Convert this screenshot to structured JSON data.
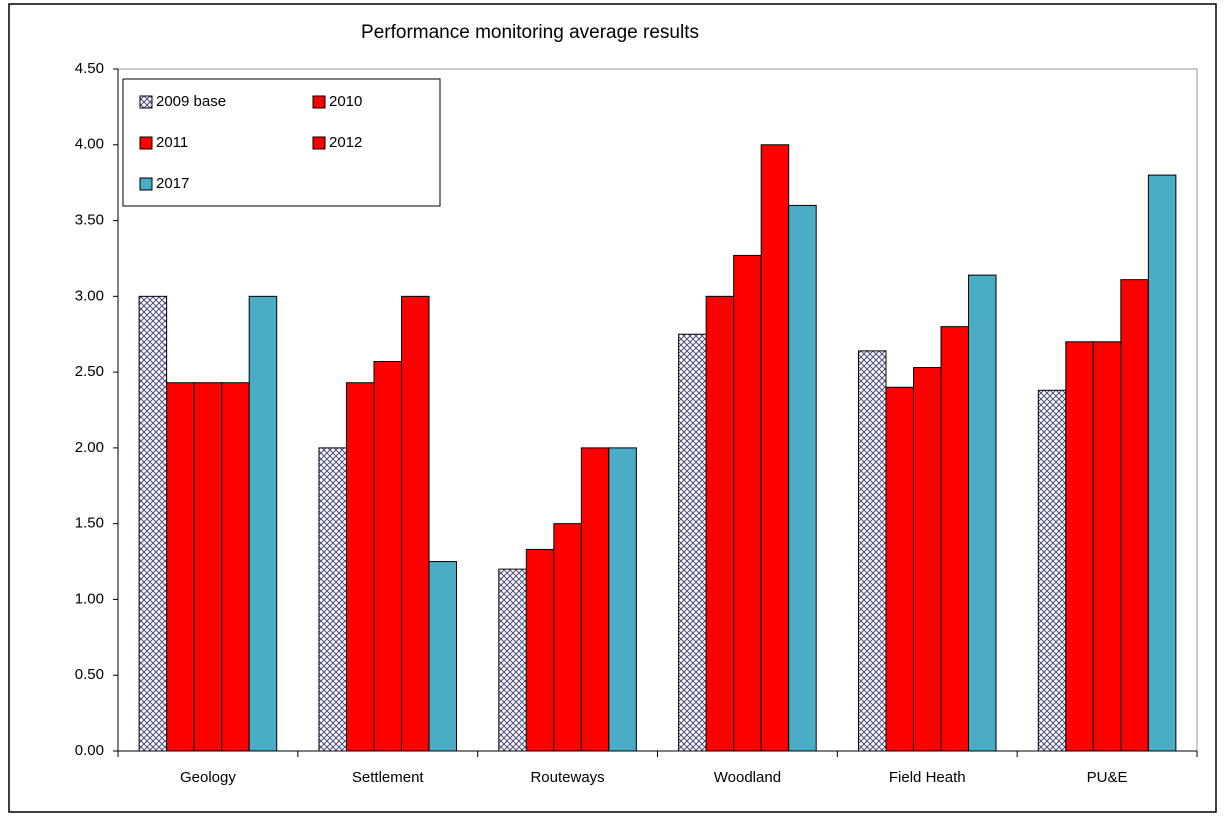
{
  "chart_data": {
    "type": "bar",
    "title": "Performance monitoring average results",
    "categories": [
      "Geology",
      "Settlement",
      "Routeways",
      "Woodland",
      "Field Heath",
      "PU&E"
    ],
    "series": [
      {
        "name": "2009 base",
        "color": "#4b4b7d",
        "pattern": "crosshatch",
        "values": [
          3.0,
          2.0,
          1.2,
          2.75,
          2.64,
          2.38
        ]
      },
      {
        "name": "2010",
        "color": "#ff0000",
        "values": [
          2.43,
          2.43,
          1.33,
          3.0,
          2.4,
          2.7
        ]
      },
      {
        "name": "2011",
        "color": "#ff0000",
        "values": [
          2.43,
          2.57,
          1.5,
          3.27,
          2.53,
          2.7
        ]
      },
      {
        "name": "2012",
        "color": "#ff0000",
        "values": [
          2.43,
          3.0,
          2.0,
          4.0,
          2.8,
          3.11
        ]
      },
      {
        "name": "2017",
        "color": "#4bacc6",
        "values": [
          3.0,
          1.25,
          2.0,
          3.6,
          3.14,
          3.8
        ]
      }
    ],
    "ylim": [
      0,
      4.5
    ],
    "yticks": [
      {
        "value": 0,
        "label": "0.00"
      },
      {
        "value": 0.5,
        "label": "0.50"
      },
      {
        "value": 1,
        "label": "1.00"
      },
      {
        "value": 1.5,
        "label": "1.50"
      },
      {
        "value": 2,
        "label": "2.00"
      },
      {
        "value": 2.5,
        "label": "2.50"
      },
      {
        "value": 3,
        "label": "3.00"
      },
      {
        "value": 3.5,
        "label": "3.50"
      },
      {
        "value": 4,
        "label": "4.00"
      },
      {
        "value": 4.5,
        "label": "4.50"
      }
    ],
    "grid": false,
    "legend": "upper left"
  }
}
